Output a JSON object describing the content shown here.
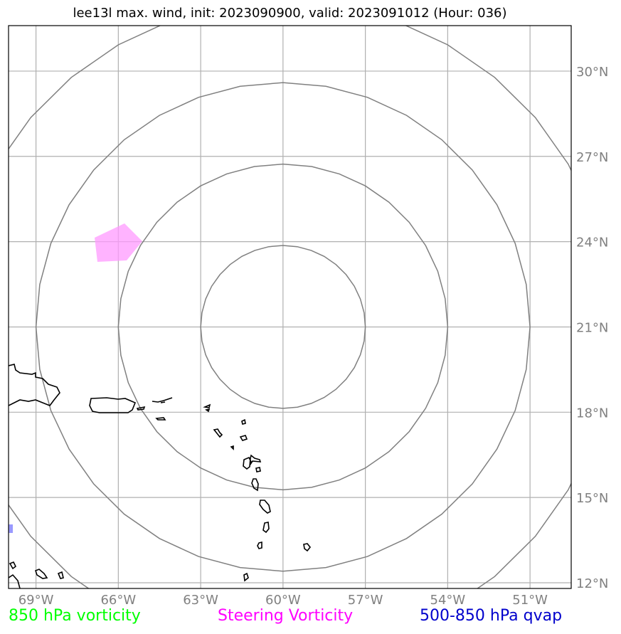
{
  "title": "lee13l max. wind, init: 2023090900, valid: 2023091012 (Hour: 036)",
  "map": {
    "lon_range": [
      -70,
      -49.5
    ],
    "lat_range": [
      11.8,
      31.6
    ],
    "lon_ticks": [
      {
        "value": -69,
        "label": "69°W"
      },
      {
        "value": -66,
        "label": "66°W"
      },
      {
        "value": -63,
        "label": "63°W"
      },
      {
        "value": -60,
        "label": "60°W"
      },
      {
        "value": -57,
        "label": "57°W"
      },
      {
        "value": -54,
        "label": "54°W"
      },
      {
        "value": -51,
        "label": "51°W"
      }
    ],
    "lat_ticks": [
      {
        "value": 30,
        "label": "30°N"
      },
      {
        "value": 27,
        "label": "27°N"
      },
      {
        "value": 24,
        "label": "24°N"
      },
      {
        "value": 21,
        "label": "21°N"
      },
      {
        "value": 18,
        "label": "18°N"
      },
      {
        "value": 15,
        "label": "15°N"
      },
      {
        "value": 12,
        "label": "12°N"
      }
    ],
    "range_rings_center": {
      "lon": -60,
      "lat": 21
    },
    "range_ring_radii_deg": [
      3,
      6,
      9,
      12
    ],
    "colors": {
      "grid": "#b0b0b0",
      "rings": "#808080",
      "coast": "#000000",
      "steering_vorticity": "#ff99ff",
      "qvap": "#8080ff"
    }
  },
  "legend": {
    "vorticity_850": {
      "label": "850 hPa vorticity",
      "color": "#00ff00"
    },
    "steering": {
      "label": "Steering Vorticity",
      "color": "#ff00ff"
    },
    "qvap": {
      "label": "500-850 hPa qvap",
      "color": "#0000cc"
    }
  }
}
